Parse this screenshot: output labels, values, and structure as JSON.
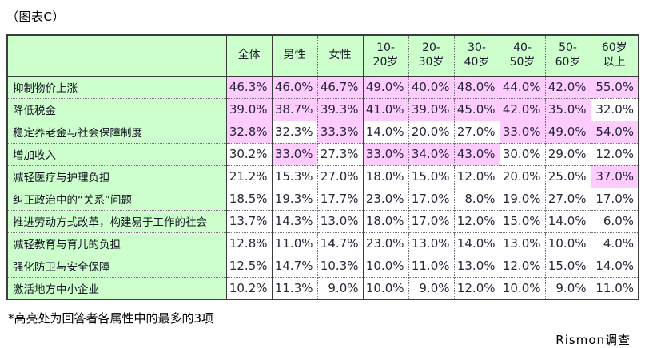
{
  "title": "（图表C）",
  "footnote": "*高亮处为回答者各属性中的最多的3项",
  "source": "Rismon调查",
  "colors": {
    "header_bg": "#ccffcc",
    "row_label_bg": "#ccffcc",
    "highlight_bg": "#ffccff",
    "grid_solid": "#3c3c3c",
    "grid_dotted": "#707070"
  },
  "table": {
    "corner": "",
    "header": [
      "全体",
      "男性",
      "女性",
      "10-\n20岁",
      "20-\n30岁",
      "30-\n40岁",
      "40-\n50岁",
      "50-\n60岁",
      "60岁\n以上"
    ],
    "rows": [
      {
        "label": "抑制物价上涨",
        "values": [
          "46.3%",
          "46.0%",
          "46.7%",
          "49.0%",
          "40.0%",
          "48.0%",
          "44.0%",
          "42.0%",
          "55.0%"
        ],
        "highlight": [
          true,
          true,
          true,
          true,
          true,
          true,
          true,
          true,
          true
        ]
      },
      {
        "label": "降低税金",
        "values": [
          "39.0%",
          "38.7%",
          "39.3%",
          "41.0%",
          "39.0%",
          "45.0%",
          "42.0%",
          "35.0%",
          "32.0%"
        ],
        "highlight": [
          true,
          true,
          true,
          true,
          true,
          true,
          true,
          true,
          false
        ]
      },
      {
        "label": "稳定养老金与社会保障制度",
        "values": [
          "32.8%",
          "32.3%",
          "33.3%",
          "14.0%",
          "20.0%",
          "27.0%",
          "33.0%",
          "49.0%",
          "54.0%"
        ],
        "highlight": [
          true,
          false,
          true,
          false,
          false,
          false,
          true,
          true,
          true
        ]
      },
      {
        "label": "增加收入",
        "values": [
          "30.2%",
          "33.0%",
          "27.3%",
          "33.0%",
          "34.0%",
          "43.0%",
          "30.0%",
          "29.0%",
          "12.0%"
        ],
        "highlight": [
          false,
          true,
          false,
          true,
          true,
          true,
          false,
          false,
          false
        ]
      },
      {
        "label": "减轻医疗与护理负担",
        "values": [
          "21.2%",
          "15.3%",
          "27.0%",
          "18.0%",
          "15.0%",
          "12.0%",
          "20.0%",
          "25.0%",
          "37.0%"
        ],
        "highlight": [
          false,
          false,
          false,
          false,
          false,
          false,
          false,
          false,
          true
        ]
      },
      {
        "label": "纠正政治中的“关系”问题",
        "values": [
          "18.5%",
          "19.3%",
          "17.7%",
          "23.0%",
          "17.0%",
          "8.0%",
          "19.0%",
          "27.0%",
          "17.0%"
        ],
        "highlight": [
          false,
          false,
          false,
          false,
          false,
          false,
          false,
          false,
          false
        ]
      },
      {
        "label": "推进劳动方式改革，构建易于工作的社会",
        "values": [
          "13.7%",
          "14.3%",
          "13.0%",
          "18.0%",
          "17.0%",
          "12.0%",
          "15.0%",
          "14.0%",
          "6.0%"
        ],
        "highlight": [
          false,
          false,
          false,
          false,
          false,
          false,
          false,
          false,
          false
        ]
      },
      {
        "label": "减轻教育与育儿的负担",
        "values": [
          "12.8%",
          "11.0%",
          "14.7%",
          "23.0%",
          "13.0%",
          "14.0%",
          "13.0%",
          "10.0%",
          "4.0%"
        ],
        "highlight": [
          false,
          false,
          false,
          false,
          false,
          false,
          false,
          false,
          false
        ]
      },
      {
        "label": "强化防卫与安全保障",
        "values": [
          "12.5%",
          "14.7%",
          "10.3%",
          "10.0%",
          "11.0%",
          "13.0%",
          "12.0%",
          "15.0%",
          "14.0%"
        ],
        "highlight": [
          false,
          false,
          false,
          false,
          false,
          false,
          false,
          false,
          false
        ]
      },
      {
        "label": "激活地方中小企业",
        "values": [
          "10.2%",
          "11.3%",
          "9.0%",
          "10.0%",
          "9.0%",
          "12.0%",
          "10.0%",
          "9.0%",
          "11.0%"
        ],
        "highlight": [
          false,
          false,
          false,
          false,
          false,
          false,
          false,
          false,
          false
        ]
      }
    ]
  },
  "chart_data": {
    "type": "table",
    "title": "（图表C）",
    "categories": [
      "全体",
      "男性",
      "女性",
      "10-20岁",
      "20-30岁",
      "30-40岁",
      "40-50岁",
      "50-60岁",
      "60岁以上"
    ],
    "series": [
      {
        "name": "抑制物价上涨",
        "values": [
          46.3,
          46.0,
          46.7,
          49.0,
          40.0,
          48.0,
          44.0,
          42.0,
          55.0
        ]
      },
      {
        "name": "降低税金",
        "values": [
          39.0,
          38.7,
          39.3,
          41.0,
          39.0,
          45.0,
          42.0,
          35.0,
          32.0
        ]
      },
      {
        "name": "稳定养老金与社会保障制度",
        "values": [
          32.8,
          32.3,
          33.3,
          14.0,
          20.0,
          27.0,
          33.0,
          49.0,
          54.0
        ]
      },
      {
        "name": "增加收入",
        "values": [
          30.2,
          33.0,
          27.3,
          33.0,
          34.0,
          43.0,
          30.0,
          29.0,
          12.0
        ]
      },
      {
        "name": "减轻医疗与护理负担",
        "values": [
          21.2,
          15.3,
          27.0,
          18.0,
          15.0,
          12.0,
          20.0,
          25.0,
          37.0
        ]
      },
      {
        "name": "纠正政治中的“关系”问题",
        "values": [
          18.5,
          19.3,
          17.7,
          23.0,
          17.0,
          8.0,
          19.0,
          27.0,
          17.0
        ]
      },
      {
        "name": "推进劳动方式改革，构建易于工作的社会",
        "values": [
          13.7,
          14.3,
          13.0,
          18.0,
          17.0,
          12.0,
          15.0,
          14.0,
          6.0
        ]
      },
      {
        "name": "减轻教育与育儿的负担",
        "values": [
          12.8,
          11.0,
          14.7,
          23.0,
          13.0,
          14.0,
          13.0,
          10.0,
          4.0
        ]
      },
      {
        "name": "强化防卫与安全保障",
        "values": [
          12.5,
          14.7,
          10.3,
          10.0,
          11.0,
          13.0,
          12.0,
          15.0,
          14.0
        ]
      },
      {
        "name": "激活地方中小企业",
        "values": [
          10.2,
          11.3,
          9.0,
          10.0,
          9.0,
          12.0,
          10.0,
          9.0,
          11.0
        ]
      }
    ],
    "annotations": [
      "*高亮处为回答者各属性中的最多的3项",
      "Rismon调查"
    ],
    "values_unit": "%"
  }
}
